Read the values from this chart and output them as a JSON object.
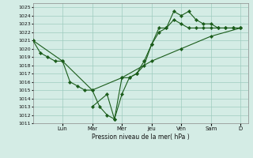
{
  "xlabel": "Pression niveau de la mer( hPa )",
  "ylim": [
    1011,
    1025.5
  ],
  "yticks": [
    1011,
    1012,
    1013,
    1014,
    1015,
    1016,
    1017,
    1018,
    1019,
    1020,
    1021,
    1022,
    1023,
    1024,
    1025
  ],
  "background_color": "#d4ece5",
  "grid_color": "#9ecbbf",
  "line_color": "#1a5c1a",
  "day_labels": [
    "Lun",
    "Mar",
    "Mer",
    "Jeu",
    "Ven",
    "Sam",
    "D"
  ],
  "day_positions": [
    2,
    4,
    6,
    8,
    10,
    12,
    14
  ],
  "xlim": [
    0,
    14.5
  ],
  "series1_x": [
    0.0,
    0.5,
    1.0,
    1.5,
    2.0,
    2.5,
    3.0,
    3.5,
    4.0,
    4.5,
    5.0,
    5.5,
    6.0,
    6.5,
    7.0,
    7.5,
    8.0,
    8.5,
    9.0,
    9.5,
    10.0,
    10.5,
    11.0,
    11.5,
    12.0,
    12.5,
    13.0,
    13.5,
    14.0
  ],
  "series1_y": [
    1021.0,
    1019.5,
    1019.0,
    1018.5,
    1018.5,
    1016.0,
    1015.5,
    1015.0,
    1015.0,
    1013.0,
    1012.0,
    1011.5,
    1014.5,
    1016.5,
    1017.0,
    1018.0,
    1020.5,
    1022.0,
    1022.5,
    1023.5,
    1023.0,
    1022.5,
    1022.5,
    1022.5,
    1022.5,
    1022.5,
    1022.5,
    1022.5,
    1022.5
  ],
  "series2_x": [
    0.0,
    2.0,
    4.0,
    6.0,
    8.0,
    10.0,
    12.0,
    14.0
  ],
  "series2_y": [
    1021.0,
    1018.5,
    1015.0,
    1016.5,
    1018.5,
    1020.0,
    1021.5,
    1022.5
  ],
  "series3_x": [
    4.0,
    5.0,
    5.5,
    6.0,
    6.5,
    7.0,
    7.5,
    8.0,
    8.5,
    9.0,
    9.5,
    10.0,
    10.5,
    11.0,
    11.5,
    12.0,
    12.5,
    13.0,
    13.5,
    14.0
  ],
  "series3_y": [
    1013.0,
    1014.5,
    1011.5,
    1016.5,
    1016.5,
    1017.0,
    1018.5,
    1020.5,
    1022.5,
    1022.5,
    1024.5,
    1024.0,
    1024.5,
    1023.5,
    1023.0,
    1023.0,
    1022.5,
    1022.5,
    1022.5,
    1022.5
  ]
}
